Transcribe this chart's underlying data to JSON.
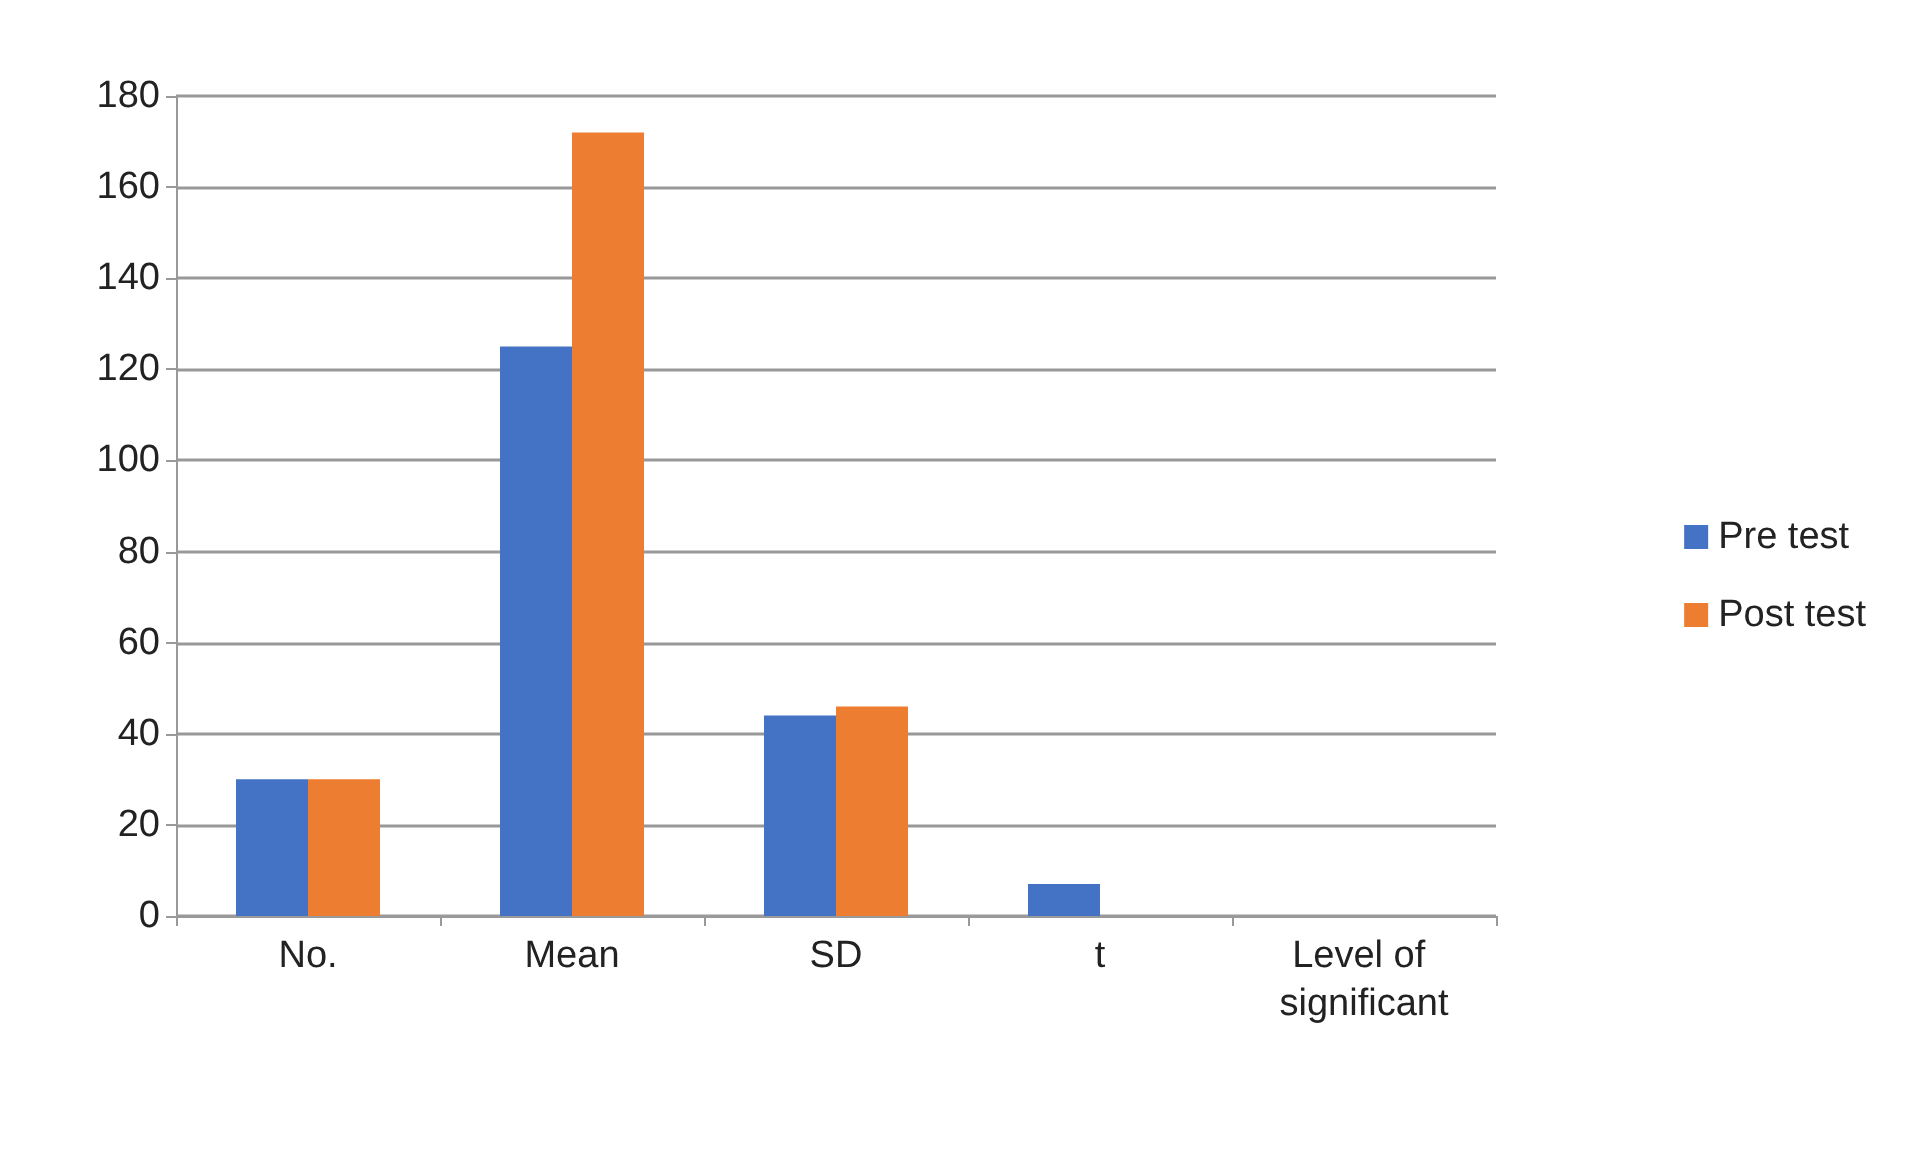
{
  "chart_data": {
    "type": "bar",
    "categories": [
      "No.",
      "Mean",
      "SD",
      "t",
      "Level of significant"
    ],
    "series": [
      {
        "name": "Pre test",
        "color": "#4472c4",
        "values": [
          30,
          125,
          44,
          7,
          0
        ]
      },
      {
        "name": "Post test",
        "color": "#ed7d31",
        "values": [
          30,
          172,
          46,
          null,
          null
        ]
      }
    ],
    "ylim": [
      0,
      180
    ],
    "yticks": [
      0,
      20,
      40,
      60,
      80,
      100,
      120,
      140,
      160,
      180
    ],
    "grid": "y",
    "legend": "right"
  }
}
